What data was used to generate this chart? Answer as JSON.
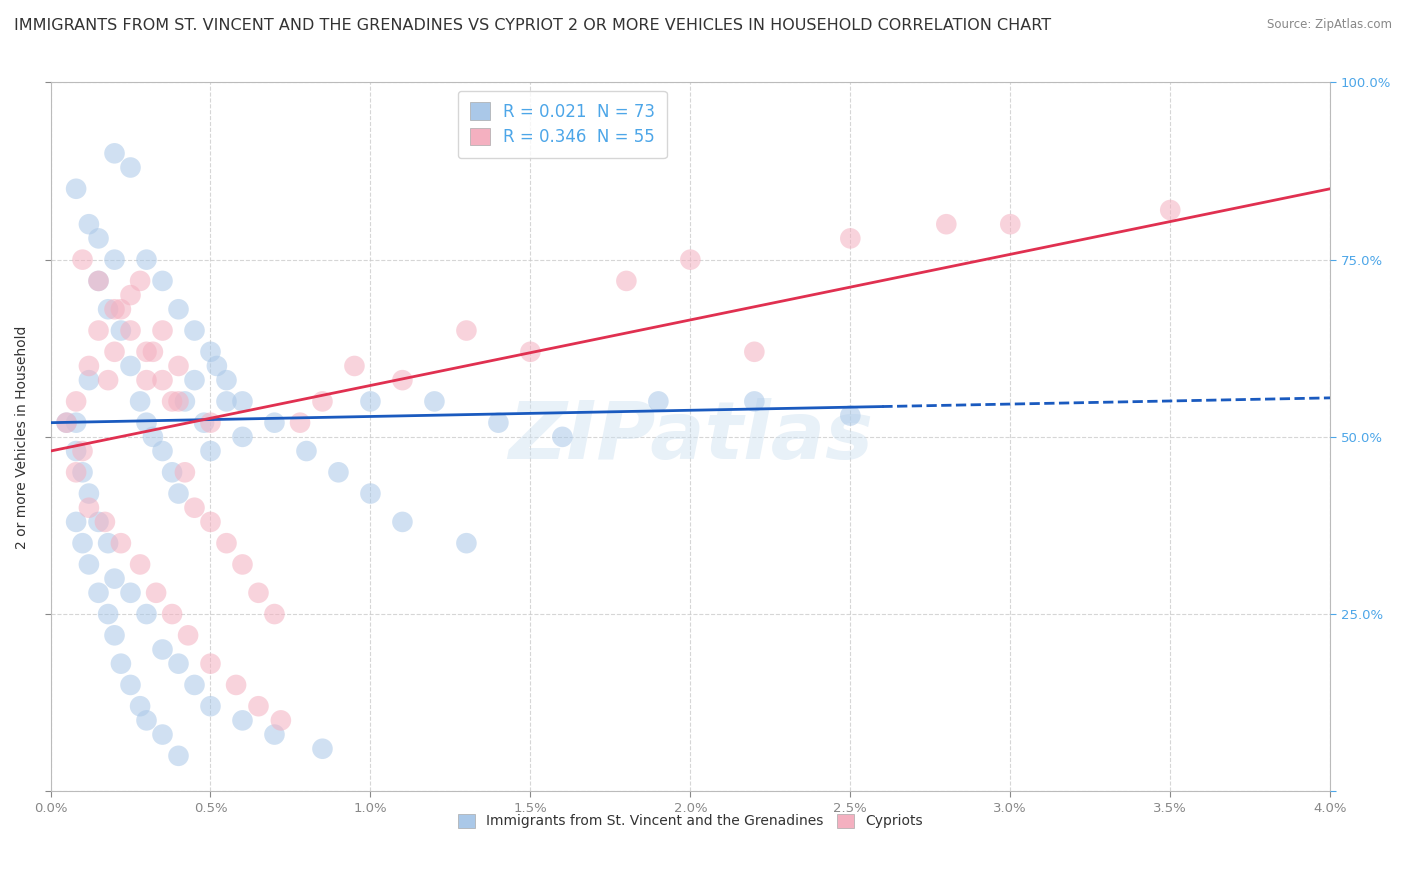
{
  "title": "IMMIGRANTS FROM ST. VINCENT AND THE GRENADINES VS CYPRIOT 2 OR MORE VEHICLES IN HOUSEHOLD CORRELATION CHART",
  "source": "Source: ZipAtlas.com",
  "ylabel": "2 or more Vehicles in Household",
  "legend_blue_label": "Immigrants from St. Vincent and the Grenadines",
  "legend_pink_label": "Cypriots",
  "blue_r": "0.021",
  "blue_n": "73",
  "pink_r": "0.346",
  "pink_n": "55",
  "blue_scatter_color": "#aac8e8",
  "pink_scatter_color": "#f4b0c0",
  "blue_line_color": "#1a5abf",
  "pink_line_color": "#e03050",
  "right_tick_color": "#4da6e8",
  "watermark": "ZIPatlas",
  "background_color": "#ffffff",
  "grid_color": "#cccccc",
  "title_color": "#333333",
  "xmin": 0.0,
  "xmax": 4.0,
  "ymin": 0.0,
  "ymax": 100.0,
  "blue_scatter_x": [
    0.08,
    0.12,
    0.15,
    0.18,
    0.2,
    0.22,
    0.25,
    0.28,
    0.3,
    0.32,
    0.35,
    0.38,
    0.4,
    0.42,
    0.45,
    0.48,
    0.5,
    0.52,
    0.55,
    0.6,
    0.08,
    0.1,
    0.12,
    0.15,
    0.18,
    0.2,
    0.22,
    0.25,
    0.28,
    0.3,
    0.35,
    0.4,
    0.05,
    0.08,
    0.1,
    0.12,
    0.15,
    0.18,
    0.2,
    0.25,
    0.3,
    0.35,
    0.4,
    0.45,
    0.5,
    0.6,
    0.7,
    0.85,
    1.0,
    1.2,
    1.4,
    1.6,
    1.9,
    2.2,
    2.5,
    0.08,
    0.12,
    0.15,
    0.2,
    0.25,
    0.3,
    0.35,
    0.4,
    0.45,
    0.5,
    0.55,
    0.6,
    0.7,
    0.8,
    0.9,
    1.0,
    1.1,
    1.3
  ],
  "blue_scatter_y": [
    52,
    58,
    72,
    68,
    75,
    65,
    60,
    55,
    52,
    50,
    48,
    45,
    42,
    55,
    58,
    52,
    48,
    60,
    55,
    50,
    38,
    35,
    32,
    28,
    25,
    22,
    18,
    15,
    12,
    10,
    8,
    5,
    52,
    48,
    45,
    42,
    38,
    35,
    30,
    28,
    25,
    20,
    18,
    15,
    12,
    10,
    8,
    6,
    55,
    55,
    52,
    50,
    55,
    55,
    53,
    85,
    80,
    78,
    90,
    88,
    75,
    72,
    68,
    65,
    62,
    58,
    55,
    52,
    48,
    45,
    42,
    38,
    35
  ],
  "pink_scatter_x": [
    0.05,
    0.08,
    0.1,
    0.12,
    0.15,
    0.18,
    0.2,
    0.22,
    0.25,
    0.28,
    0.3,
    0.32,
    0.35,
    0.38,
    0.4,
    0.42,
    0.45,
    0.5,
    0.55,
    0.6,
    0.65,
    0.7,
    0.08,
    0.12,
    0.17,
    0.22,
    0.28,
    0.33,
    0.38,
    0.43,
    0.5,
    0.58,
    0.65,
    0.72,
    0.78,
    0.85,
    0.95,
    1.1,
    1.3,
    1.5,
    1.8,
    2.0,
    2.2,
    2.5,
    2.8,
    3.0,
    3.5,
    0.1,
    0.15,
    0.2,
    0.25,
    0.3,
    0.35,
    0.4,
    0.5
  ],
  "pink_scatter_y": [
    52,
    55,
    48,
    60,
    65,
    58,
    62,
    68,
    70,
    72,
    58,
    62,
    65,
    55,
    60,
    45,
    40,
    38,
    35,
    32,
    28,
    25,
    45,
    40,
    38,
    35,
    32,
    28,
    25,
    22,
    18,
    15,
    12,
    10,
    52,
    55,
    60,
    58,
    65,
    62,
    72,
    75,
    62,
    78,
    80,
    80,
    82,
    75,
    72,
    68,
    65,
    62,
    58,
    55,
    52
  ],
  "blue_trend_x0": 0.0,
  "blue_trend_x1": 4.0,
  "blue_trend_y0": 52.0,
  "blue_trend_y1": 55.5,
  "blue_dash_start_x": 2.6,
  "pink_trend_x0": 0.0,
  "pink_trend_x1": 4.0,
  "pink_trend_y0": 48.0,
  "pink_trend_y1": 85.0,
  "title_fontsize": 11.5,
  "axis_label_fontsize": 10,
  "tick_fontsize": 9.5,
  "legend_fontsize": 12
}
